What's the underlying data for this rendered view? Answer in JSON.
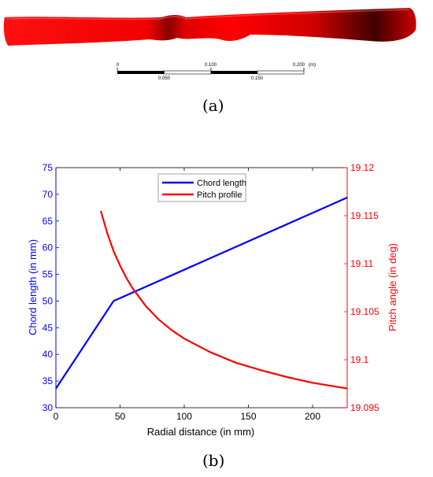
{
  "panel_a": {
    "label": "(a)",
    "scale_bar": {
      "top_labels": [
        "0",
        "0.100",
        "0.200",
        "(m)"
      ],
      "bottom_labels": [
        "0.050",
        "0.150"
      ]
    }
  },
  "panel_b": {
    "label": "(b)"
  },
  "chart_data": {
    "type": "line",
    "xlabel": "Radial distance (in mm)",
    "ylabel": "Chord length (in mm)",
    "y2label": "Pitch angle (in deg)",
    "xlim": [
      0,
      227
    ],
    "ylim": [
      30,
      75
    ],
    "y2lim": [
      19.095,
      19.12
    ],
    "xticks": [
      0,
      50,
      100,
      150,
      200
    ],
    "yticks": [
      30,
      35,
      40,
      45,
      50,
      55,
      60,
      65,
      70,
      75
    ],
    "y2ticks": [
      "19.095",
      "19.1",
      "19.105",
      "19.11",
      "19.115",
      "19.12"
    ],
    "legend_position": "top-center",
    "grid": false,
    "series": [
      {
        "name": "Chord length",
        "axis": "left",
        "color": "#0000ff",
        "x": [
          0,
          45,
          227
        ],
        "y": [
          33.6,
          50.0,
          69.4
        ]
      },
      {
        "name": "Pitch profile",
        "axis": "right",
        "color": "#ff0000",
        "x": [
          35,
          40,
          45,
          50,
          55,
          60,
          70,
          80,
          90,
          100,
          120,
          140,
          160,
          180,
          200,
          227
        ],
        "y": [
          19.1155,
          19.1132,
          19.1113,
          19.1098,
          19.1085,
          19.1074,
          19.1056,
          19.1042,
          19.1031,
          19.1022,
          19.1008,
          19.0997,
          19.0989,
          19.0982,
          19.0976,
          19.097
        ]
      }
    ]
  }
}
